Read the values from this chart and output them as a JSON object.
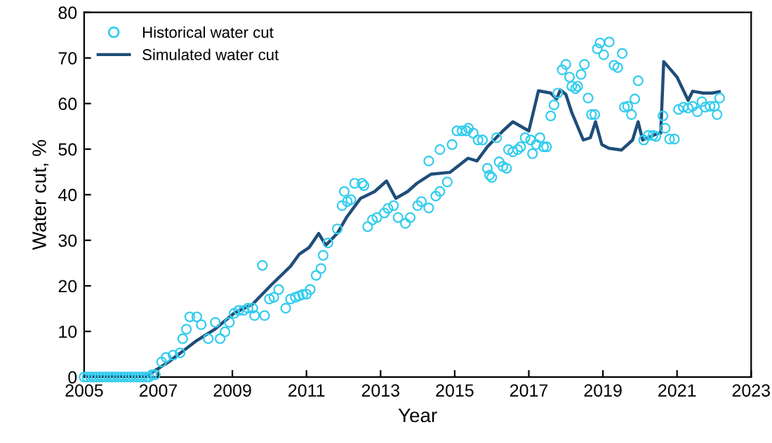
{
  "chart_data": {
    "type": "scatter",
    "xlabel": "Year",
    "ylabel": "Water cut, %",
    "xlim": [
      2005,
      2023
    ],
    "xticks": [
      2005,
      2007,
      2009,
      2011,
      2013,
      2015,
      2017,
      2019,
      2021,
      2023
    ],
    "ylim": [
      0,
      80
    ],
    "yticks": [
      0,
      10,
      20,
      30,
      40,
      50,
      60,
      70,
      80
    ],
    "grid": false,
    "legend": "top left",
    "series": [
      {
        "name": "Historical water cut",
        "marker": "circle",
        "color": "#33ccee",
        "x": [
          2005.0,
          2005.08,
          2005.17,
          2005.25,
          2005.33,
          2005.42,
          2005.5,
          2005.58,
          2005.67,
          2005.75,
          2005.83,
          2005.92,
          2006.0,
          2006.08,
          2006.17,
          2006.25,
          2006.33,
          2006.42,
          2006.5,
          2006.58,
          2006.67,
          2006.75,
          2006.83,
          2006.92,
          2007.09,
          2007.21,
          2007.4,
          2007.59,
          2007.66,
          2007.76,
          2007.85,
          2008.04,
          2008.16,
          2008.35,
          2008.54,
          2008.67,
          2008.8,
          2008.92,
          2009.05,
          2009.17,
          2009.3,
          2009.42,
          2009.55,
          2009.6,
          2009.81,
          2009.87,
          2010.0,
          2010.12,
          2010.25,
          2010.44,
          2010.57,
          2010.7,
          2010.8,
          2010.9,
          2011.0,
          2011.1,
          2011.26,
          2011.39,
          2011.45,
          2011.58,
          2011.83,
          2011.96,
          2012.02,
          2012.1,
          2012.2,
          2012.3,
          2012.5,
          2012.55,
          2012.65,
          2012.78,
          2012.9,
          2013.1,
          2013.2,
          2013.35,
          2013.47,
          2013.67,
          2013.8,
          2014.0,
          2014.1,
          2014.3,
          2014.3,
          2014.49,
          2014.6,
          2014.6,
          2014.8,
          2014.93,
          2015.06,
          2015.2,
          2015.31,
          2015.37,
          2015.5,
          2015.63,
          2015.75,
          2015.88,
          2015.94,
          2016.0,
          2016.13,
          2016.2,
          2016.3,
          2016.4,
          2016.45,
          2016.57,
          2016.7,
          2016.78,
          2016.9,
          2017.05,
          2017.1,
          2017.2,
          2017.3,
          2017.4,
          2017.48,
          2017.59,
          2017.68,
          2017.78,
          2017.9,
          2018.0,
          2018.1,
          2018.16,
          2018.26,
          2018.32,
          2018.41,
          2018.5,
          2018.6,
          2018.69,
          2018.78,
          2018.85,
          2018.92,
          2019.02,
          2019.17,
          2019.3,
          2019.4,
          2019.52,
          2019.58,
          2019.67,
          2019.77,
          2019.86,
          2019.95,
          2020.1,
          2020.22,
          2020.35,
          2020.43,
          2020.62,
          2020.68,
          2020.8,
          2020.93,
          2021.04,
          2021.17,
          2021.3,
          2021.42,
          2021.55,
          2021.67,
          2021.76,
          2021.89,
          2022.01,
          2022.08,
          2022.15
        ],
        "values": [
          0,
          0,
          0,
          0,
          0,
          0,
          0,
          0,
          0,
          0,
          0,
          0,
          0,
          0,
          0,
          0,
          0,
          0,
          0,
          0,
          0,
          0,
          0.5,
          0.5,
          3.3,
          4.3,
          4.8,
          5.3,
          8.4,
          10.5,
          13.2,
          13.2,
          11.5,
          8.4,
          12,
          8.4,
          9.9,
          12,
          14,
          14.6,
          14.6,
          15.1,
          15.1,
          13.5,
          24.5,
          13.5,
          17.1,
          17.5,
          19.2,
          15.1,
          17.1,
          17.5,
          17.8,
          18.1,
          18.2,
          19.2,
          22.3,
          23.8,
          26.7,
          29.4,
          32.5,
          37.6,
          40.7,
          38.5,
          38.9,
          42.5,
          42.5,
          42,
          33,
          34.5,
          35,
          36,
          37,
          37.6,
          35,
          33.7,
          35,
          37.6,
          38.5,
          47.4,
          37.1,
          39.7,
          40.7,
          49.9,
          42.8,
          51,
          54,
          54,
          54,
          54.6,
          53.5,
          52,
          52,
          45.8,
          44.3,
          43.8,
          52.5,
          47.2,
          46.2,
          45.8,
          49.9,
          49.4,
          49.9,
          50.5,
          52.5,
          52,
          49,
          51,
          52.5,
          50.5,
          50.5,
          57.3,
          59.7,
          62.3,
          67.4,
          68.6,
          65.8,
          63.8,
          63.3,
          63.8,
          66.4,
          68.6,
          61.2,
          57.6,
          57.6,
          72,
          73.3,
          70.7,
          73.5,
          68.4,
          67.9,
          71,
          59.2,
          59.4,
          57.6,
          61,
          65,
          52,
          53,
          53,
          52.8,
          57.3,
          54.6,
          52.2,
          52.2,
          58.7,
          59.2,
          59,
          59.4,
          58.2,
          60.4,
          59.2,
          59.4,
          59.4,
          57.6,
          61.2
        ]
      },
      {
        "name": "Simulated water cut",
        "type": "line",
        "marker": "none",
        "line_style": "solid",
        "color": "#1f4e79",
        "x": [
          2005.0,
          2006.58,
          2006.77,
          2007.28,
          2008.04,
          2008.53,
          2009.05,
          2009.55,
          2010.05,
          2010.57,
          2010.8,
          2011.07,
          2011.33,
          2011.52,
          2011.83,
          2012.08,
          2012.46,
          2012.84,
          2013.16,
          2013.41,
          2013.73,
          2013.98,
          2014.36,
          2014.87,
          2015.36,
          2015.6,
          2015.88,
          2016.3,
          2016.57,
          2017.0,
          2017.26,
          2017.59,
          2017.75,
          2017.85,
          2018.0,
          2018.16,
          2018.47,
          2018.66,
          2018.8,
          2018.97,
          2019.16,
          2019.5,
          2019.8,
          2019.95,
          2020.07,
          2020.5,
          2020.56,
          2020.64,
          2020.8,
          2021.0,
          2021.3,
          2021.42,
          2021.7,
          2021.95,
          2022.14
        ],
        "values": [
          0.2,
          0.2,
          0.7,
          3.3,
          8,
          10.5,
          14,
          16,
          20.2,
          24.3,
          26.9,
          28.4,
          31.5,
          28.9,
          31.5,
          35,
          39.2,
          40.7,
          43,
          39.2,
          40.7,
          42.5,
          44.5,
          44.9,
          48,
          47.4,
          50.5,
          54,
          56,
          54,
          62.8,
          62.3,
          61,
          63,
          62,
          58,
          52,
          52.5,
          56,
          51,
          50.2,
          49.8,
          52,
          56,
          52,
          53.5,
          53.5,
          69.2,
          67.7,
          65.8,
          60.7,
          62.7,
          62.3,
          62.3,
          62.6
        ]
      }
    ]
  }
}
